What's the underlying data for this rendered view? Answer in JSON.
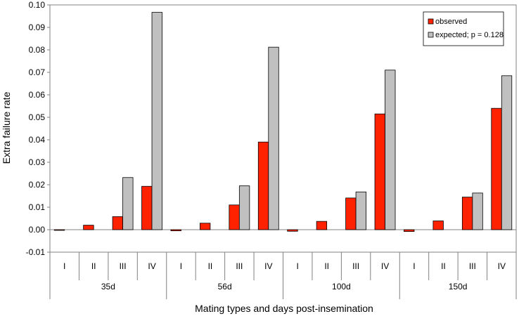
{
  "chart_data": {
    "type": "bar",
    "title": "",
    "xlabel": "Mating types and days post-insemination",
    "ylabel": "Extra failure rate",
    "ylim": [
      -0.01,
      0.1
    ],
    "yticks": [
      "0.10",
      "0.09",
      "0.08",
      "0.07",
      "0.06",
      "0.05",
      "0.04",
      "0.03",
      "0.02",
      "0.01",
      "0.00",
      "-0.01"
    ],
    "groups": [
      {
        "label": "35d",
        "categories": [
          "I",
          "II",
          "III",
          "IV"
        ]
      },
      {
        "label": "56d",
        "categories": [
          "I",
          "II",
          "III",
          "IV"
        ]
      },
      {
        "label": "100d",
        "categories": [
          "I",
          "II",
          "III",
          "IV"
        ]
      },
      {
        "label": "150d",
        "categories": [
          "I",
          "II",
          "III",
          "IV"
        ]
      }
    ],
    "series": [
      {
        "name": "observed",
        "color": "#ff2200",
        "values": [
          -0.0003,
          0.002,
          0.0058,
          0.0193,
          -0.0005,
          0.0029,
          0.011,
          0.039,
          -0.0007,
          0.0037,
          0.0141,
          0.0515,
          -0.0008,
          0.0039,
          0.0145,
          0.054
        ]
      },
      {
        "name": "expected; p = 0.128",
        "color": "#c0c0c0",
        "values": [
          0,
          0,
          0.0232,
          0.0967,
          0,
          0,
          0.0195,
          0.0812,
          0,
          0,
          0.0168,
          0.071,
          0,
          0,
          0.0163,
          0.0685
        ]
      }
    ],
    "grid": false,
    "legend_position": "top-right"
  }
}
